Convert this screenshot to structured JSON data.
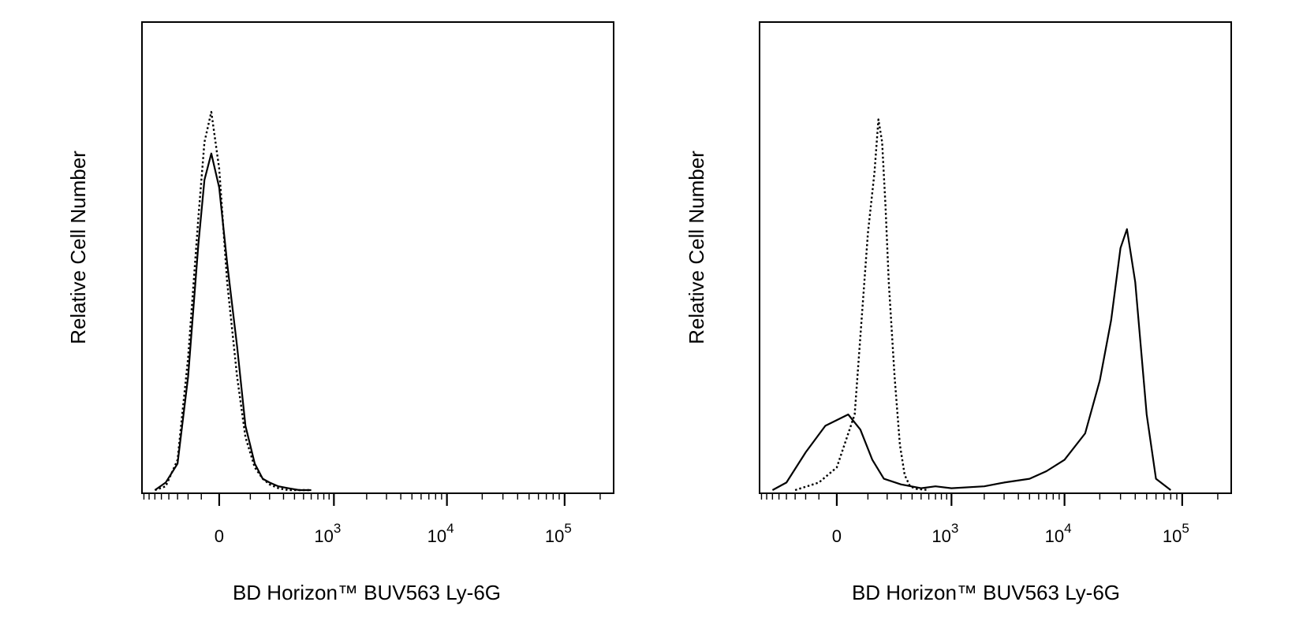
{
  "chart_data": [
    {
      "type": "line",
      "panel": "left",
      "xlabel": "BD Horizon™ BUV563 Ly-6G",
      "ylabel": "Relative Cell Number",
      "x_scale": "biexponential",
      "x_ticks": [
        {
          "label": "0",
          "value": 0,
          "sup": ""
        },
        {
          "label": "10",
          "value": 1000,
          "sup": "3"
        },
        {
          "label": "10",
          "value": 10000,
          "sup": "4"
        },
        {
          "label": "10",
          "value": 100000,
          "sup": "5"
        }
      ],
      "ylim": [
        0,
        1
      ],
      "series": [
        {
          "style": "dotted",
          "x": [
            -300,
            -220,
            -150,
            -100,
            -60,
            -40,
            -20,
            0,
            20,
            50,
            80,
            120,
            160,
            200,
            260,
            340,
            450,
            600
          ],
          "y": [
            0,
            0.01,
            0.08,
            0.35,
            0.72,
            0.92,
            1.0,
            0.85,
            0.55,
            0.3,
            0.14,
            0.06,
            0.03,
            0.015,
            0.005,
            0,
            0,
            0
          ]
        },
        {
          "style": "solid",
          "x": [
            -300,
            -220,
            -150,
            -100,
            -60,
            -40,
            -20,
            0,
            20,
            50,
            80,
            120,
            160,
            200,
            260,
            340,
            450,
            600
          ],
          "y": [
            0,
            0.02,
            0.07,
            0.3,
            0.65,
            0.82,
            0.89,
            0.8,
            0.6,
            0.38,
            0.17,
            0.07,
            0.03,
            0.02,
            0.01,
            0.005,
            0,
            0
          ]
        }
      ]
    },
    {
      "type": "line",
      "panel": "right",
      "xlabel": "BD Horizon™ BUV563 Ly-6G",
      "ylabel": "Relative Cell Number",
      "x_scale": "biexponential",
      "x_ticks": [
        {
          "label": "0",
          "value": 0,
          "sup": ""
        },
        {
          "label": "10",
          "value": 1000,
          "sup": "3"
        },
        {
          "label": "10",
          "value": 10000,
          "sup": "4"
        },
        {
          "label": "10",
          "value": 100000,
          "sup": "5"
        }
      ],
      "ylim": [
        0,
        1
      ],
      "series": [
        {
          "style": "dotted",
          "x": [
            -150,
            -50,
            0,
            50,
            100,
            130,
            150,
            170,
            190,
            210,
            250,
            290,
            330,
            380,
            450,
            600
          ],
          "y": [
            0,
            0.02,
            0.06,
            0.2,
            0.68,
            0.84,
            0.98,
            0.92,
            0.75,
            0.55,
            0.3,
            0.12,
            0.04,
            0.01,
            0.003,
            0
          ]
        },
        {
          "style": "solid",
          "x": [
            -300,
            -200,
            -100,
            -30,
            30,
            70,
            120,
            180,
            300,
            500,
            700,
            1000,
            2000,
            3000,
            5000,
            7000,
            10000,
            15000,
            20000,
            25000,
            30000,
            34000,
            40000,
            50000,
            60000,
            80000
          ],
          "y": [
            0,
            0.02,
            0.1,
            0.17,
            0.2,
            0.16,
            0.08,
            0.03,
            0.015,
            0.005,
            0.01,
            0.005,
            0.01,
            0.02,
            0.03,
            0.05,
            0.08,
            0.15,
            0.29,
            0.45,
            0.64,
            0.69,
            0.55,
            0.2,
            0.03,
            0
          ]
        }
      ]
    }
  ]
}
